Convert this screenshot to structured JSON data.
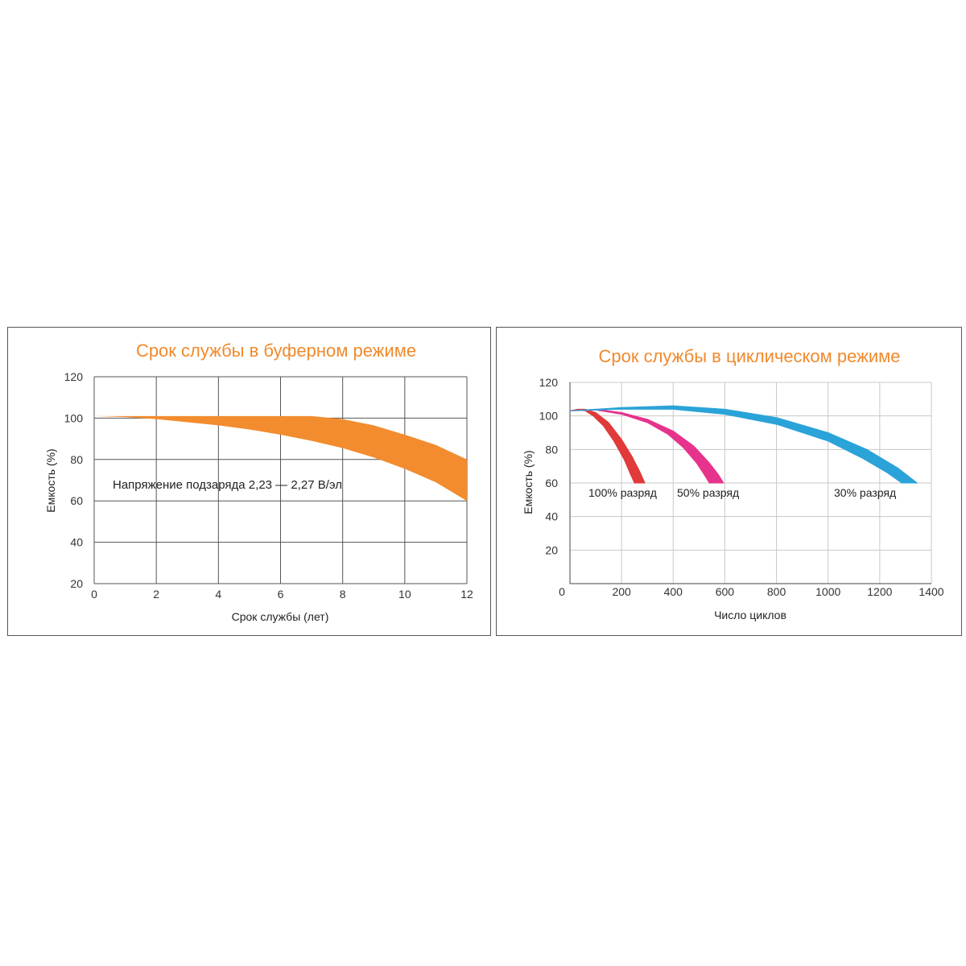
{
  "chart_data": [
    {
      "type": "area",
      "title": "Срок службы в буферном режиме",
      "xlabel": "Срок службы (лет)",
      "ylabel": "Емкость (%)",
      "xlim": [
        0,
        12
      ],
      "ylim": [
        20,
        120
      ],
      "x_ticks": [
        "0",
        "2",
        "4",
        "6",
        "8",
        "10",
        "12"
      ],
      "y_ticks": [
        "120",
        "100",
        "80",
        "60",
        "40",
        "20"
      ],
      "grid": true,
      "annotation": "Напряжение подзаряда 2,23 — 2,27 В/эл",
      "band_color": "#f28c2e",
      "band": {
        "x": [
          0,
          1,
          2,
          3,
          4,
          5,
          6,
          7,
          8,
          9,
          10,
          11,
          12
        ],
        "upper": [
          101,
          101,
          101,
          101,
          101,
          101,
          101,
          101,
          99.5,
          96.5,
          92,
          87,
          80
        ],
        "lower": [
          101,
          100.5,
          99.5,
          98,
          96.5,
          94.5,
          92,
          89,
          85.5,
          81,
          75.5,
          69,
          60
        ]
      }
    },
    {
      "type": "area",
      "title": "Срок службы в циклическом режиме",
      "xlabel": "Число циклов",
      "ylabel": "Емкость (%)",
      "xlim": [
        0,
        1400
      ],
      "ylim": [
        0,
        120
      ],
      "x_ticks": [
        "0",
        "200",
        "400",
        "600",
        "800",
        "1000",
        "1200",
        "1400"
      ],
      "y_ticks": [
        "120",
        "100",
        "80",
        "60",
        "40",
        "20"
      ],
      "grid": true,
      "series": [
        {
          "name": "100% разряд",
          "color": "#e03a3a",
          "upper": [
            [
              0,
              103
            ],
            [
              30,
              104
            ],
            [
              60,
              104
            ],
            [
              100,
              102
            ],
            [
              150,
              96
            ],
            [
              200,
              86
            ],
            [
              240,
              76
            ],
            [
              270,
              67
            ],
            [
              290,
              60
            ]
          ],
          "lower": [
            [
              0,
              103
            ],
            [
              30,
              103.5
            ],
            [
              60,
              103
            ],
            [
              90,
              100
            ],
            [
              130,
              94
            ],
            [
              170,
              85
            ],
            [
              210,
              74
            ],
            [
              235,
              65
            ],
            [
              250,
              60
            ]
          ]
        },
        {
          "name": "50% разряд",
          "color": "#e6338c",
          "upper": [
            [
              0,
              103
            ],
            [
              100,
              104
            ],
            [
              200,
              102
            ],
            [
              300,
              98
            ],
            [
              400,
              91
            ],
            [
              480,
              82
            ],
            [
              540,
              72
            ],
            [
              575,
              65
            ],
            [
              595,
              60
            ]
          ],
          "lower": [
            [
              0,
              103
            ],
            [
              100,
              103.5
            ],
            [
              200,
              101
            ],
            [
              300,
              96
            ],
            [
              380,
              89
            ],
            [
              440,
              81
            ],
            [
              490,
              72
            ],
            [
              520,
              65
            ],
            [
              540,
              60
            ]
          ]
        },
        {
          "name": "30% разряд",
          "color": "#2aa3d8",
          "upper": [
            [
              0,
              103
            ],
            [
              200,
              105
            ],
            [
              400,
              106
            ],
            [
              600,
              104
            ],
            [
              800,
              99
            ],
            [
              1000,
              90
            ],
            [
              1150,
              80
            ],
            [
              1270,
              69
            ],
            [
              1345,
              60
            ]
          ],
          "lower": [
            [
              0,
              103
            ],
            [
              200,
              104
            ],
            [
              400,
              104
            ],
            [
              600,
              101
            ],
            [
              800,
              95
            ],
            [
              1000,
              85
            ],
            [
              1130,
              75
            ],
            [
              1230,
              66
            ],
            [
              1285,
              60
            ]
          ]
        }
      ]
    }
  ]
}
